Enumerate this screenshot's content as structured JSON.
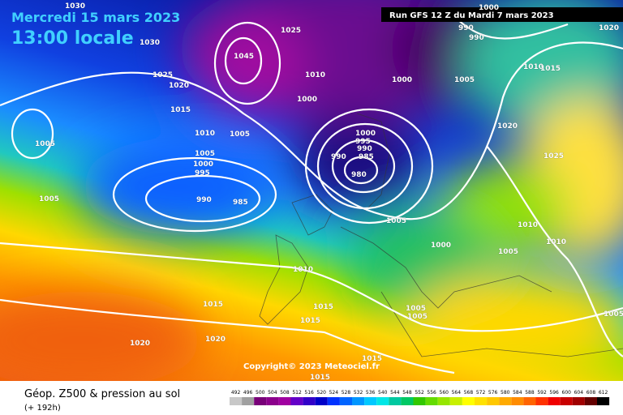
{
  "header": {
    "date": "Mercredi 15 mars 2023",
    "time": "13:00 locale"
  },
  "run": "Run GFS 12 Z du Mardi 7 mars 2023",
  "copyright": "Copyright© 2023 Meteociel.fr",
  "footer": {
    "title": "Géop. Z500 & pression au sol",
    "step": "(+ 192h)"
  },
  "isobar_labels": [
    "1030",
    "1030",
    "1025",
    "1045",
    "1025",
    "1020",
    "1015",
    "1010",
    "1000",
    "1010",
    "1005",
    "1005",
    "1005",
    "1000",
    "995",
    "990",
    "985",
    "1005",
    "1000",
    "995",
    "990",
    "990",
    "985",
    "980",
    "1000",
    "1005",
    "1010",
    "1015",
    "1020",
    "1025",
    "990",
    "990",
    "1000",
    "1020",
    "1005",
    "1000",
    "1005",
    "1010",
    "1010",
    "1010",
    "1015",
    "1015",
    "1015",
    "1005",
    "1005",
    "1005",
    "1020",
    "1020",
    "1015",
    "1015"
  ],
  "legend": {
    "values": [
      492,
      496,
      500,
      504,
      508,
      512,
      516,
      520,
      524,
      528,
      532,
      536,
      540,
      544,
      548,
      552,
      556,
      560,
      564,
      568,
      572,
      576,
      580,
      584,
      588,
      592,
      596,
      600,
      604,
      608,
      612
    ],
    "colors": [
      "#c8c8c8",
      "#a0a0a0",
      "#780078",
      "#8c008c",
      "#a000a0",
      "#6400c8",
      "#3200c8",
      "#0000c8",
      "#0032ff",
      "#0064ff",
      "#0096ff",
      "#00c8ff",
      "#00e6e6",
      "#00c8a0",
      "#00c864",
      "#32c800",
      "#64dc00",
      "#96e600",
      "#c8f000",
      "#ffff00",
      "#ffe100",
      "#ffc800",
      "#ffaa00",
      "#ff8c00",
      "#ff6400",
      "#ff3200",
      "#f00000",
      "#c80000",
      "#a00000",
      "#640000",
      "#000000"
    ]
  }
}
